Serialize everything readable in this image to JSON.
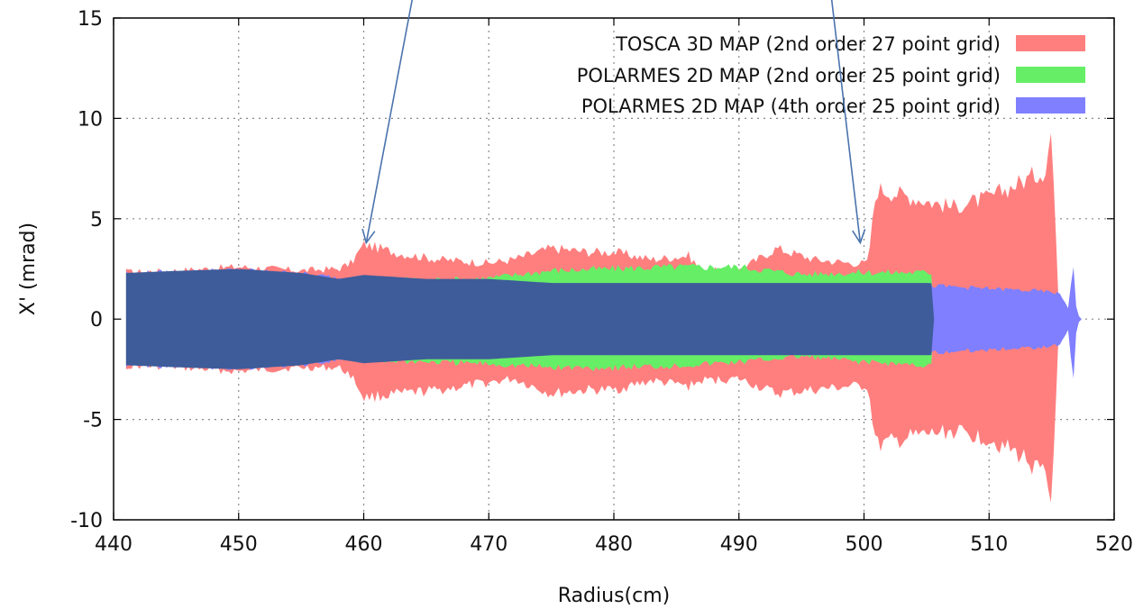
{
  "chart_data": {
    "type": "area",
    "xlabel": "Radius(cm)",
    "ylabel": "X' (mrad)",
    "xlim": [
      440,
      520
    ],
    "ylim": [
      -10,
      15
    ],
    "x_ticks": [
      440,
      450,
      460,
      470,
      480,
      490,
      500,
      510,
      520
    ],
    "y_ticks": [
      -10,
      -5,
      0,
      5,
      10,
      15
    ],
    "grid": true,
    "legend_position": "top-right",
    "series": [
      {
        "name": "TOSCA 3D MAP (2nd order 27 point grid)",
        "color": "#ff7f7f",
        "x": [
          441,
          445,
          450,
          455,
          458,
          459,
          460,
          463,
          466,
          470,
          472,
          475,
          478,
          480,
          483,
          486,
          487,
          490,
          493,
          496,
          499,
          500.3,
          501,
          504,
          507,
          510,
          513,
          514.5,
          515,
          515.6
        ],
        "upper": [
          2.5,
          2.6,
          2.8,
          2.6,
          2.7,
          3.0,
          4.0,
          3.5,
          3.2,
          3.0,
          3.2,
          3.8,
          3.6,
          3.6,
          3.2,
          3.4,
          2.6,
          2.6,
          3.8,
          3.2,
          3.0,
          3.0,
          7.0,
          6.5,
          6.0,
          6.5,
          7.5,
          8.0,
          10.2,
          0
        ],
        "lower": [
          -2.5,
          -2.6,
          -2.8,
          -2.6,
          -2.6,
          -3.0,
          -4.2,
          -4.0,
          -3.8,
          -3.4,
          -3.2,
          -4.0,
          -3.8,
          -3.8,
          -3.3,
          -3.6,
          -3.3,
          -3.2,
          -4.0,
          -3.8,
          -3.6,
          -3.6,
          -6.8,
          -6.3,
          -6.0,
          -6.4,
          -7.5,
          -8.5,
          -10.0,
          0
        ]
      },
      {
        "name": "POLARMES 2D MAP (2nd order 25 point grid)",
        "color": "#66ee66",
        "x": [
          441,
          445,
          450,
          455,
          458,
          460,
          465,
          470,
          475,
          480,
          485,
          490,
          495,
          500,
          505.5,
          505.6
        ],
        "upper": [
          2.3,
          2.4,
          2.5,
          2.3,
          2.0,
          2.2,
          2.1,
          2.2,
          2.6,
          2.7,
          2.8,
          2.8,
          2.4,
          2.5,
          2.5,
          0
        ],
        "lower": [
          -2.3,
          -2.4,
          -2.5,
          -2.3,
          -2.0,
          -2.2,
          -2.3,
          -2.4,
          -2.6,
          -2.6,
          -2.5,
          -2.3,
          -2.0,
          -2.3,
          -2.5,
          0
        ]
      },
      {
        "name": "POLARMES 2D MAP (4th order 25 point grid)",
        "color": "#7f7fff",
        "x": [
          441,
          445,
          450,
          455,
          458,
          460,
          465,
          470,
          475,
          480,
          485,
          490,
          495,
          500,
          505,
          508,
          511,
          514,
          515.5,
          516,
          516.4,
          516.7,
          517.0,
          517.4
        ],
        "upper": [
          2.4,
          2.5,
          2.6,
          2.4,
          2.2,
          2.2,
          2.0,
          2.0,
          1.8,
          1.8,
          1.8,
          1.8,
          1.8,
          1.8,
          1.8,
          1.7,
          1.6,
          1.5,
          1.4,
          1.0,
          0.5,
          3.5,
          0.3,
          0
        ],
        "lower": [
          -2.4,
          -2.5,
          -2.6,
          -2.4,
          -2.2,
          -2.2,
          -2.0,
          -2.0,
          -1.8,
          -1.8,
          -1.8,
          -1.8,
          -1.8,
          -1.8,
          -1.8,
          -1.7,
          -1.6,
          -1.5,
          -1.4,
          -1.0,
          -0.5,
          -4.0,
          -0.3,
          0
        ]
      }
    ],
    "annotations": [
      {
        "type": "arrow",
        "from": [
          463.9,
          16.0
        ],
        "to": [
          460.2,
          3.8
        ]
      },
      {
        "type": "arrow",
        "from": [
          497.4,
          16.0
        ],
        "to": [
          499.7,
          3.8
        ]
      }
    ]
  },
  "colors": {
    "overlap": "#3e5c9a",
    "arrow": "#4a73ad",
    "axis": "#000000",
    "grid": "#888888"
  }
}
